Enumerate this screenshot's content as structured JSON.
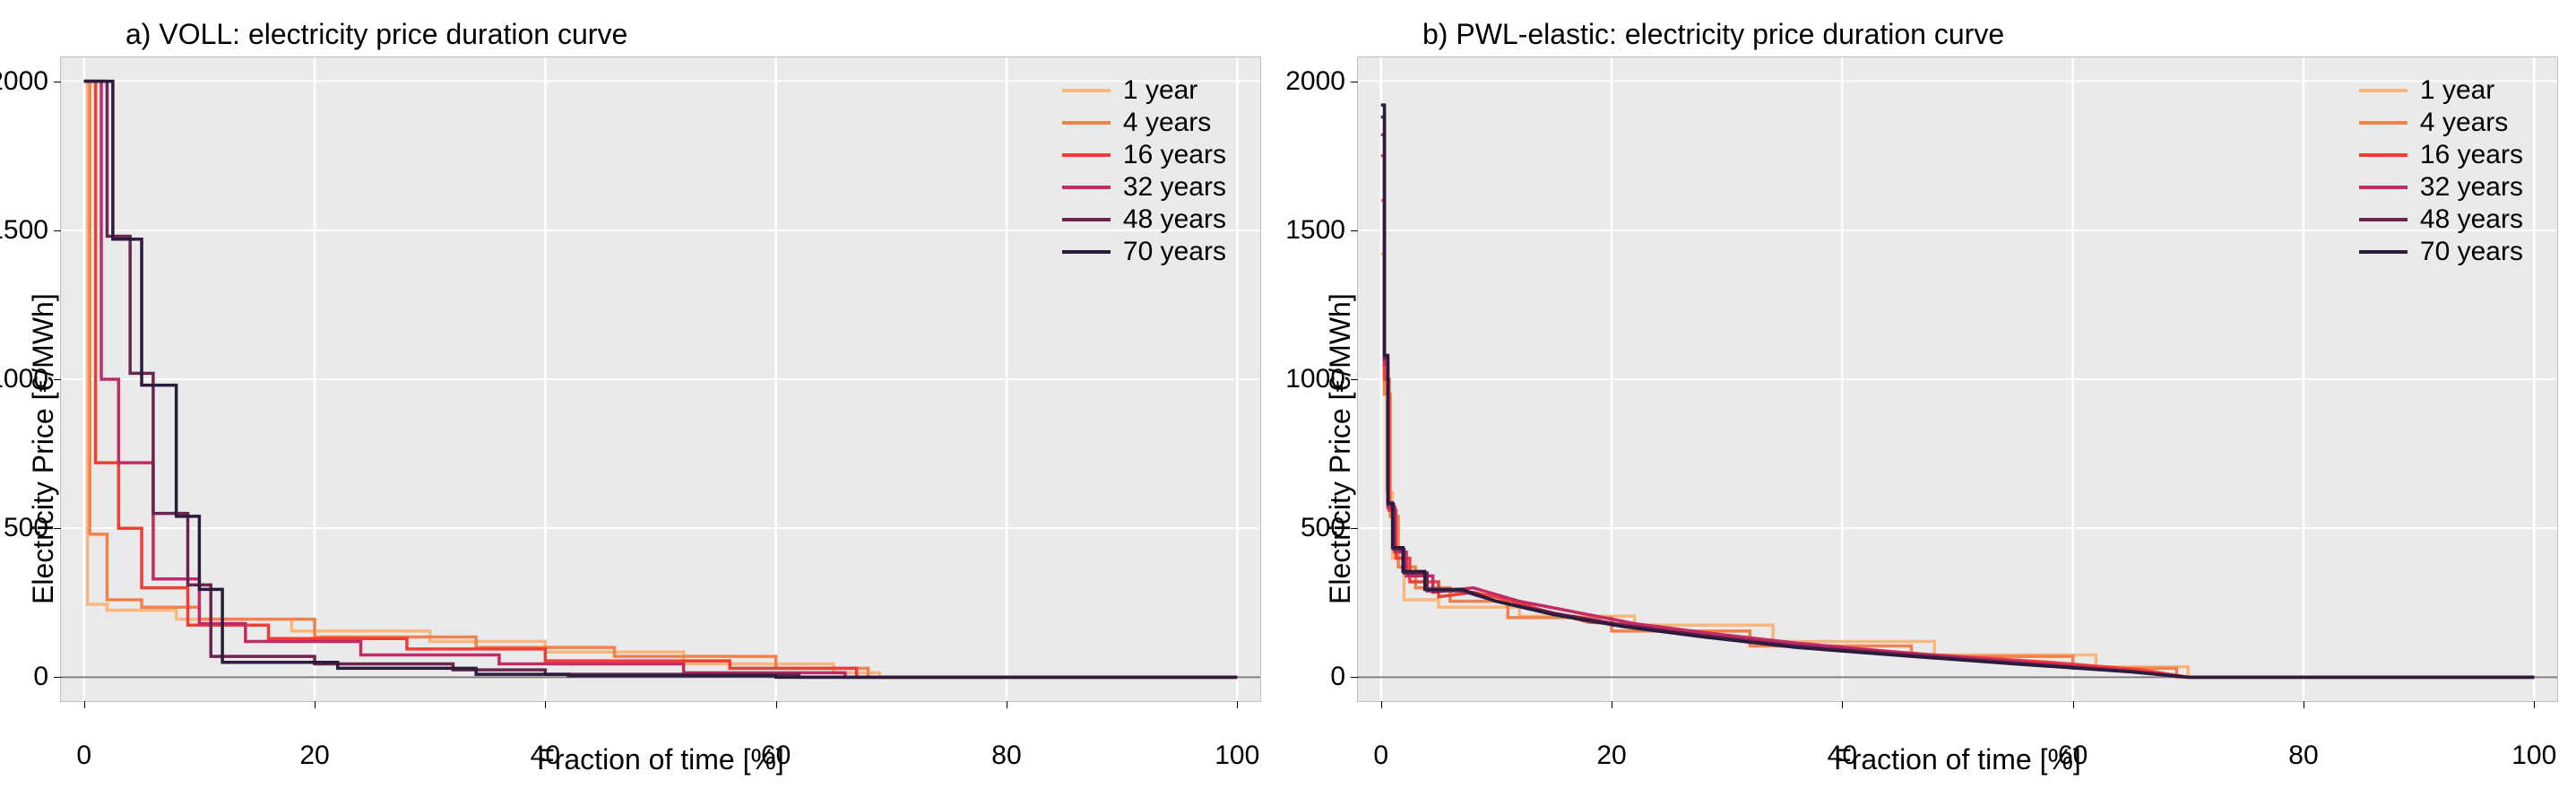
{
  "layout": {
    "background_color": "#ffffff",
    "plot_background_color": "#eaeaea",
    "grid_color": "#ffffff",
    "zero_line_color": "#808080",
    "axis_color": "#000000",
    "line_width": 3.5,
    "grid_width": 1.8,
    "font_family": "sans-serif",
    "title_fontsize": 32,
    "label_fontsize": 32,
    "tick_fontsize": 30,
    "legend_fontsize": 30
  },
  "legend": {
    "position": "top-right",
    "labels": [
      "1 year",
      "4 years",
      "16 years",
      "32 years",
      "48 years",
      "70 years"
    ],
    "colors": [
      "#f8b77e",
      "#f1814d",
      "#ef3e36",
      "#c42a66",
      "#6b2450",
      "#2b1b3d"
    ]
  },
  "axes": {
    "xlabel": "Fraction of time [%]",
    "ylabel": "Electricity Price [€/MWh]",
    "xlim": [
      -2,
      102
    ],
    "ylim": [
      -80,
      2080
    ],
    "xticks": [
      0,
      20,
      40,
      60,
      80,
      100
    ],
    "yticks": [
      0,
      500,
      1000,
      1500,
      2000
    ]
  },
  "panels": [
    {
      "id": "voll",
      "title": "a) VOLL: electricity price duration curve",
      "series": [
        {
          "label": "1 year",
          "color": "#f8b77e",
          "points": [
            [
              0,
              2000
            ],
            [
              0.3,
              2000
            ],
            [
              0.3,
              245
            ],
            [
              2,
              245
            ],
            [
              2,
              225
            ],
            [
              8,
              225
            ],
            [
              8,
              195
            ],
            [
              18,
              195
            ],
            [
              18,
              155
            ],
            [
              30,
              155
            ],
            [
              30,
              120
            ],
            [
              40,
              120
            ],
            [
              40,
              85
            ],
            [
              52,
              85
            ],
            [
              52,
              45
            ],
            [
              65,
              45
            ],
            [
              65,
              15
            ],
            [
              69,
              15
            ],
            [
              69,
              0
            ],
            [
              100,
              0
            ]
          ]
        },
        {
          "label": "4 years",
          "color": "#f1814d",
          "points": [
            [
              0,
              2000
            ],
            [
              0.5,
              2000
            ],
            [
              0.5,
              480
            ],
            [
              2,
              480
            ],
            [
              2,
              260
            ],
            [
              5,
              260
            ],
            [
              5,
              235
            ],
            [
              10,
              235
            ],
            [
              10,
              195
            ],
            [
              20,
              195
            ],
            [
              20,
              135
            ],
            [
              34,
              135
            ],
            [
              34,
              100
            ],
            [
              46,
              100
            ],
            [
              46,
              70
            ],
            [
              60,
              70
            ],
            [
              60,
              30
            ],
            [
              68,
              30
            ],
            [
              68,
              0
            ],
            [
              100,
              0
            ]
          ]
        },
        {
          "label": "16 years",
          "color": "#ef3e36",
          "points": [
            [
              0,
              2000
            ],
            [
              1,
              2000
            ],
            [
              1,
              720
            ],
            [
              3,
              720
            ],
            [
              3,
              500
            ],
            [
              5,
              500
            ],
            [
              5,
              300
            ],
            [
              9,
              300
            ],
            [
              9,
              175
            ],
            [
              16,
              175
            ],
            [
              16,
              130
            ],
            [
              28,
              130
            ],
            [
              28,
              95
            ],
            [
              40,
              95
            ],
            [
              40,
              55
            ],
            [
              56,
              55
            ],
            [
              56,
              30
            ],
            [
              67,
              30
            ],
            [
              67,
              0
            ],
            [
              100,
              0
            ]
          ]
        },
        {
          "label": "32 years",
          "color": "#c42a66",
          "points": [
            [
              0,
              2000
            ],
            [
              1.5,
              2000
            ],
            [
              1.5,
              1000
            ],
            [
              3,
              1000
            ],
            [
              3,
              720
            ],
            [
              6,
              720
            ],
            [
              6,
              330
            ],
            [
              10,
              330
            ],
            [
              10,
              180
            ],
            [
              14,
              180
            ],
            [
              14,
              120
            ],
            [
              24,
              120
            ],
            [
              24,
              75
            ],
            [
              36,
              75
            ],
            [
              36,
              45
            ],
            [
              52,
              45
            ],
            [
              52,
              15
            ],
            [
              66,
              15
            ],
            [
              66,
              0
            ],
            [
              100,
              0
            ]
          ]
        },
        {
          "label": "48 years",
          "color": "#6b2450",
          "points": [
            [
              0,
              2000
            ],
            [
              2,
              2000
            ],
            [
              2,
              1480
            ],
            [
              4,
              1480
            ],
            [
              4,
              1020
            ],
            [
              6,
              1020
            ],
            [
              6,
              550
            ],
            [
              9,
              550
            ],
            [
              9,
              310
            ],
            [
              11,
              310
            ],
            [
              11,
              70
            ],
            [
              20,
              70
            ],
            [
              20,
              45
            ],
            [
              32,
              45
            ],
            [
              32,
              25
            ],
            [
              40,
              25
            ],
            [
              40,
              10
            ],
            [
              62,
              10
            ],
            [
              62,
              0
            ],
            [
              100,
              0
            ]
          ]
        },
        {
          "label": "70 years",
          "color": "#2b1b3d",
          "points": [
            [
              0,
              2000
            ],
            [
              2.5,
              2000
            ],
            [
              2.5,
              1470
            ],
            [
              5,
              1470
            ],
            [
              5,
              980
            ],
            [
              8,
              980
            ],
            [
              8,
              540
            ],
            [
              10,
              540
            ],
            [
              10,
              295
            ],
            [
              12,
              295
            ],
            [
              12,
              50
            ],
            [
              22,
              50
            ],
            [
              22,
              30
            ],
            [
              34,
              30
            ],
            [
              34,
              10
            ],
            [
              42,
              10
            ],
            [
              42,
              5
            ],
            [
              60,
              5
            ],
            [
              60,
              0
            ],
            [
              100,
              0
            ]
          ]
        }
      ]
    },
    {
      "id": "pwl",
      "title": "b) PWL-elastic: electricity price duration curve",
      "series": [
        {
          "label": "1 year",
          "color": "#f8b77e",
          "points": [
            [
              0,
              1420
            ],
            [
              0.3,
              1420
            ],
            [
              0.3,
              1050
            ],
            [
              0.5,
              1050
            ],
            [
              0.5,
              620
            ],
            [
              1,
              620
            ],
            [
              1,
              400
            ],
            [
              2,
              400
            ],
            [
              2,
              260
            ],
            [
              5,
              260
            ],
            [
              5,
              235
            ],
            [
              12,
              235
            ],
            [
              12,
              205
            ],
            [
              22,
              205
            ],
            [
              22,
              175
            ],
            [
              34,
              175
            ],
            [
              34,
              120
            ],
            [
              48,
              120
            ],
            [
              48,
              75
            ],
            [
              62,
              75
            ],
            [
              62,
              35
            ],
            [
              70,
              35
            ],
            [
              70,
              0
            ],
            [
              100,
              0
            ]
          ]
        },
        {
          "label": "4 years",
          "color": "#f1814d",
          "points": [
            [
              0,
              1600
            ],
            [
              0.3,
              1600
            ],
            [
              0.3,
              950
            ],
            [
              0.8,
              950
            ],
            [
              0.8,
              540
            ],
            [
              1.5,
              540
            ],
            [
              1.5,
              370
            ],
            [
              3,
              370
            ],
            [
              3,
              300
            ],
            [
              6,
              300
            ],
            [
              6,
              255
            ],
            [
              11,
              255
            ],
            [
              11,
              200
            ],
            [
              20,
              200
            ],
            [
              20,
              155
            ],
            [
              32,
              155
            ],
            [
              32,
              105
            ],
            [
              46,
              105
            ],
            [
              46,
              70
            ],
            [
              60,
              70
            ],
            [
              60,
              30
            ],
            [
              69,
              30
            ],
            [
              69,
              0
            ],
            [
              100,
              0
            ]
          ]
        },
        {
          "label": "16 years",
          "color": "#ef3e36",
          "points": [
            [
              0,
              1750
            ],
            [
              0.3,
              1750
            ],
            [
              0.3,
              1000
            ],
            [
              0.7,
              1000
            ],
            [
              0.7,
              560
            ],
            [
              1.3,
              560
            ],
            [
              1.3,
              400
            ],
            [
              2.5,
              400
            ],
            [
              2.5,
              320
            ],
            [
              5,
              320
            ],
            [
              5,
              270
            ],
            [
              8,
              285
            ],
            [
              11,
              260
            ],
            [
              14,
              225
            ],
            [
              18,
              185
            ],
            [
              24,
              170
            ],
            [
              30,
              135
            ],
            [
              38,
              105
            ],
            [
              48,
              75
            ],
            [
              58,
              50
            ],
            [
              66,
              25
            ],
            [
              70,
              0
            ],
            [
              100,
              0
            ]
          ]
        },
        {
          "label": "32 years",
          "color": "#c42a66",
          "points": [
            [
              0,
              1820
            ],
            [
              0.3,
              1820
            ],
            [
              0.3,
              1050
            ],
            [
              0.6,
              1050
            ],
            [
              0.6,
              570
            ],
            [
              1.2,
              570
            ],
            [
              1.2,
              420
            ],
            [
              2.2,
              420
            ],
            [
              2.2,
              340
            ],
            [
              4.5,
              340
            ],
            [
              4.5,
              285
            ],
            [
              8,
              300
            ],
            [
              12,
              255
            ],
            [
              16,
              225
            ],
            [
              22,
              180
            ],
            [
              28,
              150
            ],
            [
              36,
              115
            ],
            [
              46,
              80
            ],
            [
              56,
              50
            ],
            [
              64,
              25
            ],
            [
              70,
              0
            ],
            [
              100,
              0
            ]
          ]
        },
        {
          "label": "48 years",
          "color": "#6b2450",
          "points": [
            [
              0,
              1880
            ],
            [
              0.3,
              1880
            ],
            [
              0.3,
              1070
            ],
            [
              0.6,
              1070
            ],
            [
              0.6,
              580
            ],
            [
              1.1,
              580
            ],
            [
              1.1,
              430
            ],
            [
              2,
              430
            ],
            [
              2,
              350
            ],
            [
              4,
              350
            ],
            [
              4,
              290
            ],
            [
              7,
              290
            ],
            [
              10,
              255
            ],
            [
              15,
              215
            ],
            [
              21,
              175
            ],
            [
              28,
              140
            ],
            [
              36,
              105
            ],
            [
              46,
              75
            ],
            [
              56,
              45
            ],
            [
              65,
              20
            ],
            [
              70,
              0
            ],
            [
              100,
              0
            ]
          ]
        },
        {
          "label": "70 years",
          "color": "#2b1b3d",
          "points": [
            [
              0,
              1920
            ],
            [
              0.3,
              1920
            ],
            [
              0.3,
              1080
            ],
            [
              0.6,
              1080
            ],
            [
              0.6,
              585
            ],
            [
              1,
              585
            ],
            [
              1,
              435
            ],
            [
              1.9,
              435
            ],
            [
              1.9,
              355
            ],
            [
              3.8,
              355
            ],
            [
              3.8,
              295
            ],
            [
              7,
              295
            ],
            [
              10,
              255
            ],
            [
              15,
              210
            ],
            [
              21,
              170
            ],
            [
              28,
              135
            ],
            [
              36,
              100
            ],
            [
              46,
              70
            ],
            [
              56,
              42
            ],
            [
              65,
              18
            ],
            [
              70,
              0
            ],
            [
              100,
              0
            ]
          ]
        }
      ]
    }
  ]
}
